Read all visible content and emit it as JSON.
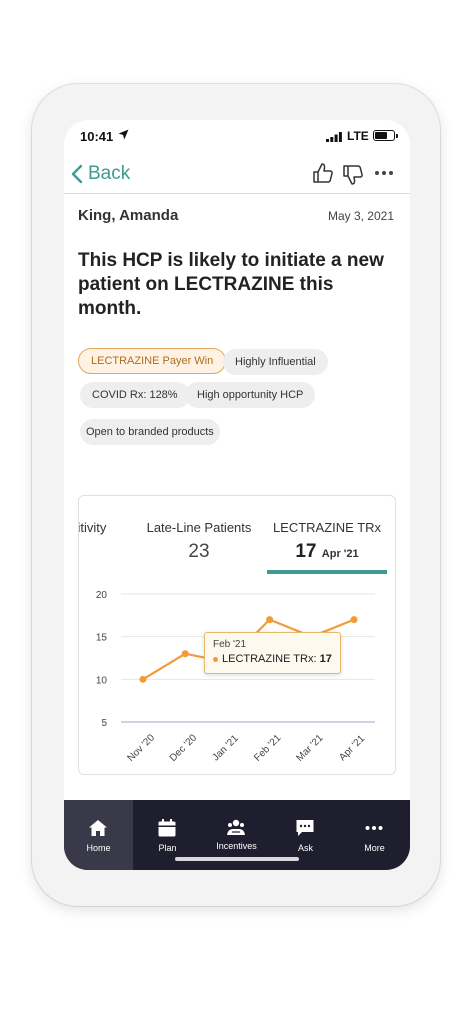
{
  "status_bar": {
    "time": "10:41",
    "network": "LTE",
    "battery_level": 0.7
  },
  "nav": {
    "back_label": "Back",
    "icons": [
      "thumbs-up-icon",
      "thumbs-down-icon",
      "more-icon"
    ]
  },
  "record": {
    "name": "King, Amanda",
    "date": "May 3, 2021"
  },
  "headline": "This HCP is likely to initiate a new patient on LECTRAZINE this month.",
  "tags": [
    {
      "label": "LECTRAZINE Payer Win",
      "highlighted": true
    },
    {
      "label": "Highly Influential",
      "highlighted": false
    },
    {
      "label": "COVID Rx: 128%",
      "highlighted": false
    },
    {
      "label": "High opportunity HCP",
      "highlighted": false
    },
    {
      "label": "Open to branded products",
      "highlighted": false
    }
  ],
  "metrics": [
    {
      "label": "sitivity",
      "value": "/"
    },
    {
      "label": "Late-Line Patients",
      "value": "23"
    },
    {
      "label": "LECTRAZINE TRx",
      "value": "17",
      "period": "Apr '21",
      "selected": true
    }
  ],
  "chart_data": {
    "type": "line",
    "categories": [
      "Nov '20",
      "Dec '20",
      "Jan '21",
      "Feb '21",
      "Mar '21",
      "Apr '21"
    ],
    "series": [
      {
        "name": "LECTRAZINE TRx",
        "values": [
          10,
          13,
          12,
          17,
          15,
          17
        ],
        "color": "#f29b38"
      }
    ],
    "yticks": [
      5,
      10,
      15,
      20
    ],
    "ylim": [
      5,
      20
    ],
    "grid": true,
    "tooltip": {
      "date": "Feb '21",
      "series": "LECTRAZINE TRx",
      "value": "17"
    }
  },
  "tabs": [
    {
      "label": "Home",
      "icon": "home-icon",
      "active": true
    },
    {
      "label": "Plan",
      "icon": "calendar-icon",
      "active": false
    },
    {
      "label": "Incentives",
      "icon": "incentives-icon",
      "active": false
    },
    {
      "label": "Ask",
      "icon": "chat-icon",
      "active": false
    },
    {
      "label": "More",
      "icon": "more-icon",
      "active": false
    }
  ],
  "colors": {
    "accent": "#3f9a92",
    "series": "#f29b38",
    "tabbar": "#1f1e2e"
  }
}
